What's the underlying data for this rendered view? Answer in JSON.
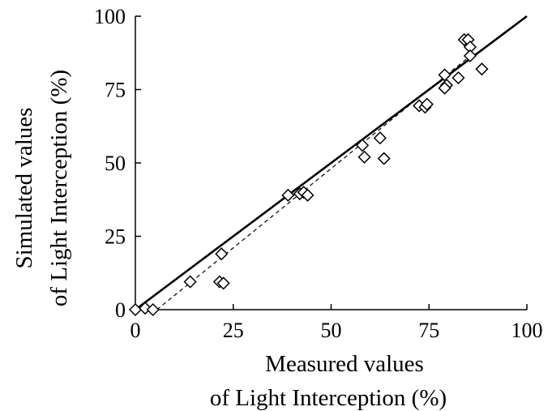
{
  "chart_data": {
    "type": "scatter",
    "xlabel": [
      "Measured values",
      "of Light Interception (%)"
    ],
    "ylabel": [
      "Simulated values",
      "of Light Interception (%)"
    ],
    "xlim": [
      0,
      100
    ],
    "ylim": [
      0,
      100
    ],
    "xticks": [
      "0",
      "25",
      "50",
      "75",
      "100"
    ],
    "yticks": [
      "0",
      "25",
      "50",
      "75",
      "100"
    ],
    "grid": false,
    "series": [
      {
        "marker": "diamond-open",
        "points": [
          [
            0,
            0
          ],
          [
            2.5,
            0.5
          ],
          [
            4.5,
            0
          ],
          [
            14,
            9.5
          ],
          [
            21.5,
            9.5
          ],
          [
            22.5,
            9
          ],
          [
            22,
            19
          ],
          [
            39,
            39
          ],
          [
            42,
            39.5
          ],
          [
            43,
            40
          ],
          [
            44,
            39
          ],
          [
            58,
            56
          ],
          [
            58.5,
            52
          ],
          [
            62.5,
            58.5
          ],
          [
            63.5,
            51.5
          ],
          [
            72.5,
            69.5
          ],
          [
            74,
            69
          ],
          [
            74.5,
            70
          ],
          [
            79,
            80
          ],
          [
            79.5,
            76.5
          ],
          [
            79,
            75.5
          ],
          [
            82.5,
            79
          ],
          [
            84,
            92
          ],
          [
            85,
            92
          ],
          [
            85.5,
            89.5
          ],
          [
            85.5,
            86.5
          ],
          [
            88.5,
            82
          ]
        ]
      },
      {
        "type": "line",
        "style": "solid",
        "points": [
          [
            0,
            0
          ],
          [
            100,
            100
          ]
        ]
      },
      {
        "type": "line",
        "style": "dashed",
        "points": [
          [
            5.5,
            0
          ],
          [
            86.5,
            87.5
          ]
        ]
      }
    ]
  }
}
